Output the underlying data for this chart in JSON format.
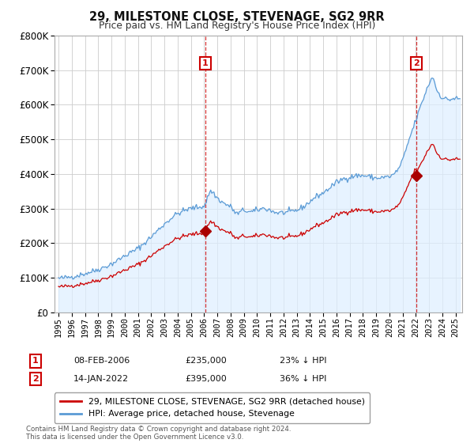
{
  "title": "29, MILESTONE CLOSE, STEVENAGE, SG2 9RR",
  "subtitle": "Price paid vs. HM Land Registry's House Price Index (HPI)",
  "footer": "Contains HM Land Registry data © Crown copyright and database right 2024.\nThis data is licensed under the Open Government Licence v3.0.",
  "legend_line1": "29, MILESTONE CLOSE, STEVENAGE, SG2 9RR (detached house)",
  "legend_line2": "HPI: Average price, detached house, Stevenage",
  "marker1_label": "1",
  "marker1_date": "08-FEB-2006",
  "marker1_price": "£235,000",
  "marker1_pct": "23% ↓ HPI",
  "marker1_year": 2006.1,
  "marker1_value": 235000,
  "marker2_label": "2",
  "marker2_date": "14-JAN-2022",
  "marker2_price": "£395,000",
  "marker2_pct": "36% ↓ HPI",
  "marker2_year": 2022.04,
  "marker2_value": 395000,
  "hpi_color": "#5b9bd5",
  "hpi_fill_color": "#ddeeff",
  "sale_color": "#cc0000",
  "marker_color": "#aa0000",
  "grid_color": "#cccccc",
  "background_color": "#ffffff",
  "ylim": [
    0,
    800000
  ],
  "xlim_start": 1994.7,
  "xlim_end": 2025.5
}
